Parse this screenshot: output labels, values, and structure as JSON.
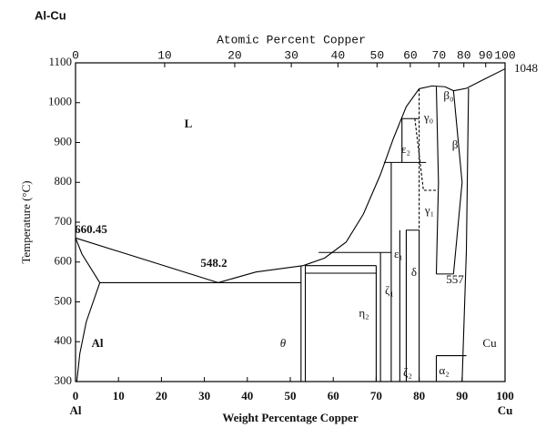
{
  "chart_data": {
    "type": "phase-diagram",
    "title": "Al-Cu",
    "xlabel": "Weight Percentage Copper",
    "ylabel": "Temperature (°C)",
    "x2label": "Atomic Percent Copper",
    "xlim": [
      0,
      100
    ],
    "xticks": [
      0,
      10,
      20,
      30,
      40,
      50,
      60,
      70,
      80,
      90,
      100
    ],
    "ylim": [
      300,
      1100
    ],
    "yticks": [
      300,
      400,
      500,
      600,
      700,
      800,
      900,
      1000,
      1100
    ],
    "x2lim": [
      0,
      100
    ],
    "x2ticks": [
      0,
      10,
      20,
      30,
      40,
      50,
      60,
      70,
      80,
      90,
      100
    ],
    "x2scale": "atomic-percent",
    "x_end_labels": [
      "Al",
      "Cu"
    ],
    "color": "#000000",
    "annotations": [
      "L",
      "660.45",
      "548.2",
      "1048",
      "557",
      "Al",
      "θ",
      "Cu",
      "β₀",
      "β",
      "γ₀",
      "γ₁",
      "ε₂",
      "ε₁",
      "η₂",
      "ζ₁",
      "ζ₂",
      "δ",
      "α₂"
    ],
    "series": [
      {
        "x": [
          0,
          33.2
        ],
        "y": [
          660.45,
          548.2
        ]
      },
      {
        "x": [
          33.2,
          42,
          53
        ],
        "y": [
          548.2,
          575,
          591
        ]
      },
      {
        "x": [
          53,
          58,
          63,
          67,
          71,
          74,
          77,
          80
        ],
        "y": [
          591,
          610,
          650,
          720,
          820,
          910,
          990,
          1035
        ]
      },
      {
        "x": [
          80,
          83,
          86
        ],
        "y": [
          1035,
          1042,
          1040
        ]
      },
      {
        "x": [
          86,
          88,
          91,
          95,
          100
        ],
        "y": [
          1040,
          1030,
          1036,
          1058,
          1085
        ]
      },
      {
        "x": [
          91.5,
          91,
          90
        ],
        "y": [
          1036,
          630,
          300
        ]
      },
      {
        "x": [
          0,
          1.5,
          5.65
        ],
        "y": [
          660.45,
          620,
          548.2
        ]
      },
      {
        "x": [
          5.65,
          2.5,
          1,
          0.3
        ],
        "y": [
          548.2,
          450,
          370,
          300
        ]
      },
      {
        "x": [
          5.65,
          52.5
        ],
        "y": [
          548.2,
          548.2
        ]
      },
      {
        "x": [
          52.5,
          52.5
        ],
        "y": [
          300,
          591
        ]
      },
      {
        "x": [
          53.5,
          53.5
        ],
        "y": [
          300,
          591
        ]
      },
      {
        "x": [
          53.5,
          70
        ],
        "y": [
          591,
          591
        ]
      },
      {
        "x": [
          56.6,
          73.5
        ],
        "y": [
          624,
          624
        ]
      },
      {
        "x": [
          53.5,
          70
        ],
        "y": [
          572,
          572
        ]
      },
      {
        "x": [
          70,
          70
        ],
        "y": [
          300,
          591
        ]
      },
      {
        "x": [
          71,
          71
        ],
        "y": [
          300,
          624
        ]
      },
      {
        "x": [
          73.5,
          73.5
        ],
        "y": [
          300,
          850
        ]
      },
      {
        "x": [
          75.5,
          75.5
        ],
        "y": [
          300,
          680
        ]
      },
      {
        "x": [
          77,
          77,
          80,
          80
        ],
        "y": [
          300,
          680,
          680,
          300
        ]
      },
      {
        "x": [
          71.8,
          81.6
        ],
        "y": [
          850,
          850
        ]
      },
      {
        "x": [
          76,
          76,
          80
        ],
        "y": [
          850,
          960,
          960
        ]
      },
      {
        "x": [
          84,
          84.5,
          84
        ],
        "y": [
          1040,
          800,
          570
        ]
      },
      {
        "x": [
          88,
          90,
          88
        ],
        "y": [
          1030,
          800,
          570
        ]
      },
      {
        "x": [
          84,
          88
        ],
        "y": [
          570,
          570
        ]
      },
      {
        "x": [
          84,
          91
        ],
        "y": [
          365,
          365
        ]
      },
      {
        "x": [
          84,
          84
        ],
        "y": [
          300,
          365
        ]
      },
      {
        "x": [
          79,
          81,
          84
        ],
        "y": [
          960,
          780,
          780
        ],
        "dashed": true
      },
      {
        "x": [
          80,
          80
        ],
        "y": [
          1035,
          680
        ],
        "dashed": true
      }
    ]
  }
}
